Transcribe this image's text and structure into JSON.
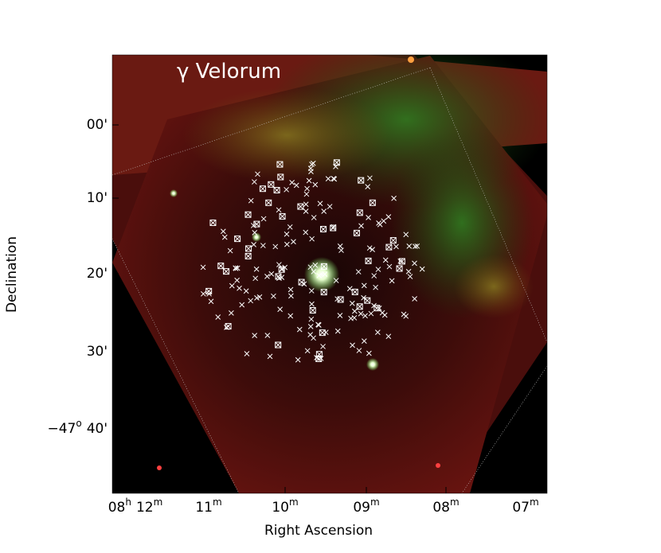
{
  "figure": {
    "title": "γ Velorum",
    "x_label": "Right Ascension",
    "y_label": "Declination",
    "x_ticks": [
      [
        "08",
        "h",
        "12",
        "m"
      ],
      [
        "11",
        "m"
      ],
      [
        "10",
        "m"
      ],
      [
        "09",
        "m"
      ],
      [
        "08",
        "m"
      ],
      [
        "07",
        "m"
      ]
    ],
    "y_ticks": [
      [
        "00'"
      ],
      [
        "10'"
      ],
      [
        "20'"
      ],
      [
        "30'"
      ],
      [
        "−47",
        "o",
        "40'"
      ]
    ]
  }
}
